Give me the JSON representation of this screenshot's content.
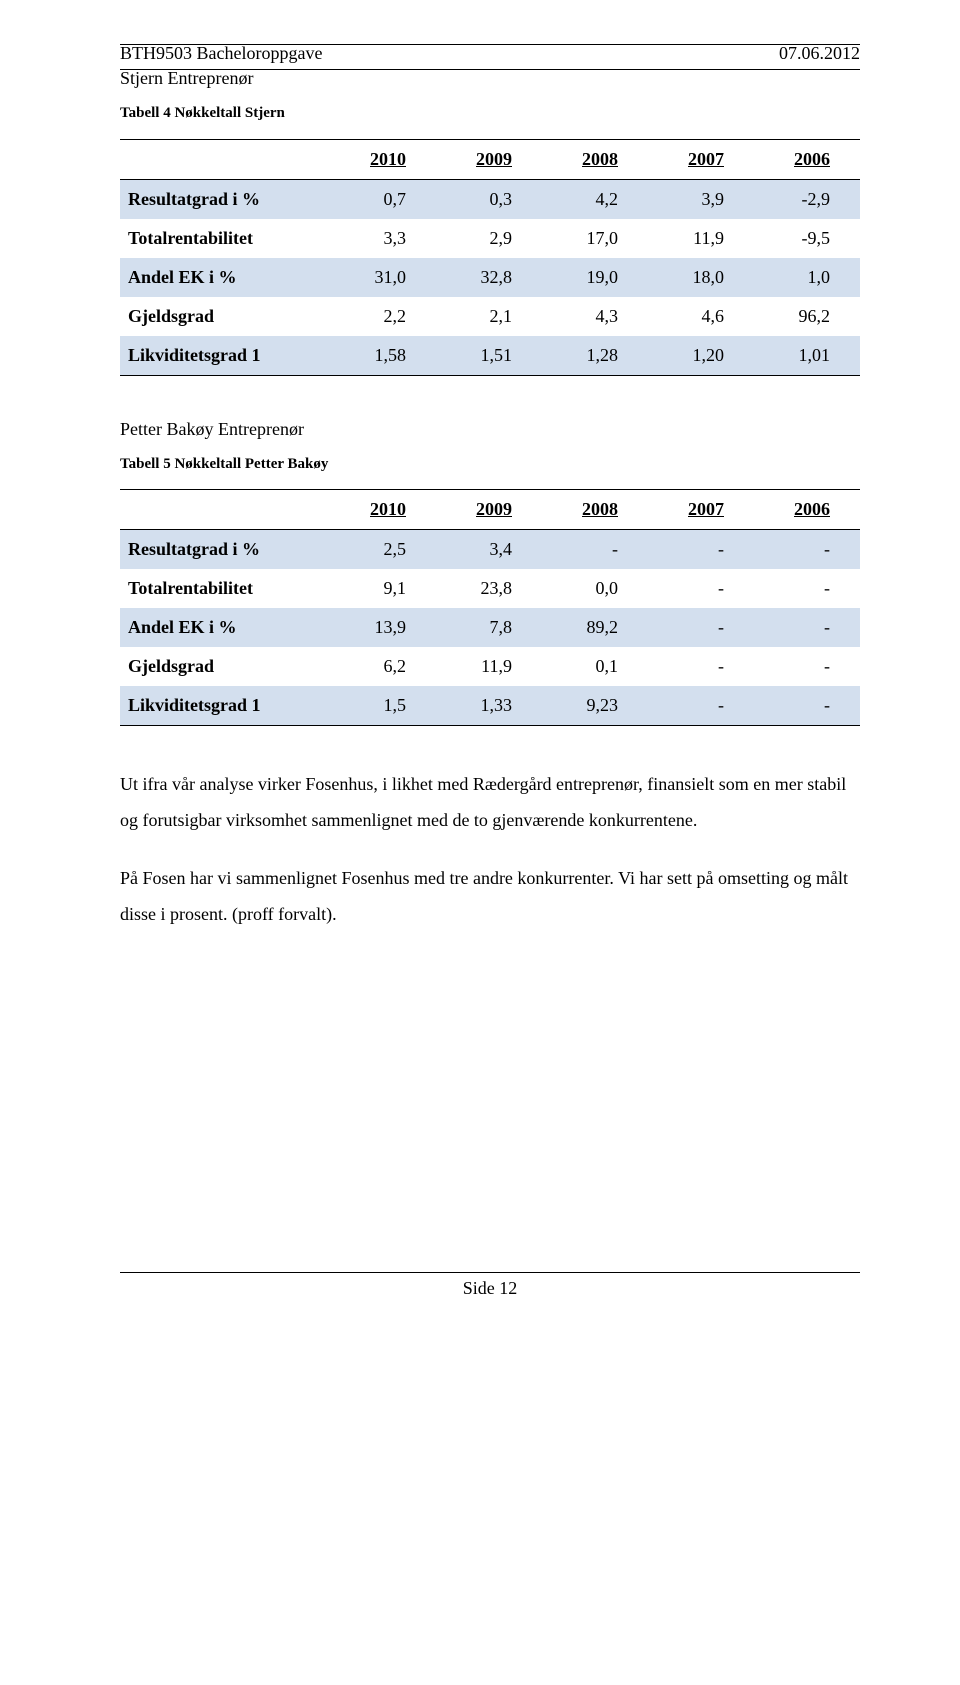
{
  "header": {
    "left": "BTH9503 Bacheloroppgave",
    "right": "07.06.2012"
  },
  "section1": {
    "title": "Stjern Entreprenør",
    "caption": "Tabell 4 Nøkkeltall Stjern"
  },
  "table1": {
    "years": [
      "2010",
      "2009",
      "2008",
      "2007",
      "2006"
    ],
    "rows": [
      {
        "label": "Resultatgrad i %",
        "vals": [
          "0,7",
          "0,3",
          "4,2",
          "3,9",
          "-2,9"
        ],
        "blue": true
      },
      {
        "label": "Totalrentabilitet",
        "vals": [
          "3,3",
          "2,9",
          "17,0",
          "11,9",
          "-9,5"
        ],
        "blue": false
      },
      {
        "label": "Andel EK i %",
        "vals": [
          "31,0",
          "32,8",
          "19,0",
          "18,0",
          "1,0"
        ],
        "blue": true
      },
      {
        "label": "Gjeldsgrad",
        "vals": [
          "2,2",
          "2,1",
          "4,3",
          "4,6",
          "96,2"
        ],
        "blue": false
      },
      {
        "label": "Likviditetsgrad 1",
        "vals": [
          "1,58",
          "1,51",
          "1,28",
          "1,20",
          "1,01"
        ],
        "blue": true
      }
    ]
  },
  "section2": {
    "title": "Petter Bakøy Entreprenør",
    "caption": "Tabell 5 Nøkkeltall Petter Bakøy"
  },
  "table2": {
    "years": [
      "2010",
      "2009",
      "2008",
      "2007",
      "2006"
    ],
    "rows": [
      {
        "label": "Resultatgrad i %",
        "vals": [
          "2,5",
          "3,4",
          "-",
          "-",
          "-"
        ],
        "blue": true
      },
      {
        "label": "Totalrentabilitet",
        "vals": [
          "9,1",
          "23,8",
          "0,0",
          "-",
          "-"
        ],
        "blue": false
      },
      {
        "label": "Andel EK i %",
        "vals": [
          "13,9",
          "7,8",
          "89,2",
          "-",
          "-"
        ],
        "blue": true
      },
      {
        "label": "Gjeldsgrad",
        "vals": [
          "6,2",
          "11,9",
          "0,1",
          "-",
          "-"
        ],
        "blue": false
      },
      {
        "label": "Likviditetsgrad 1",
        "vals": [
          "1,5",
          "1,33",
          "9,23",
          "-",
          "-"
        ],
        "blue": true
      }
    ]
  },
  "paragraph1": "Ut ifra vår analyse virker Fosenhus, i likhet med Rædergård entreprenør, finansielt som en mer stabil og forutsigbar virksomhet sammenlignet med de to gjenværende konkurrentene.",
  "paragraph2": "På Fosen har vi sammenlignet Fosenhus med tre andre konkurrenter. Vi har sett på omsetting og målt disse i prosent. (proff forvalt).",
  "footer": "Side 12"
}
